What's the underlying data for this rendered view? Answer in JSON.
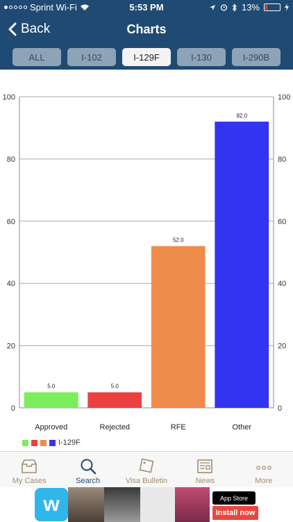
{
  "status_bar": {
    "carrier": "Sprint Wi-Fi",
    "time": "5:53 PM",
    "battery": "13%"
  },
  "nav": {
    "back_label": "Back",
    "title": "Charts"
  },
  "tabs": [
    {
      "label": "ALL",
      "active": false
    },
    {
      "label": "I-102",
      "active": false
    },
    {
      "label": "I-129F",
      "active": true
    },
    {
      "label": "I-130",
      "active": false
    },
    {
      "label": "I-290B",
      "active": false
    }
  ],
  "chart_data": {
    "type": "bar",
    "categories": [
      "Approved",
      "Rejected",
      "RFE",
      "Other"
    ],
    "values": [
      5,
      5,
      52,
      92
    ],
    "value_labels": [
      "5.0",
      "5.0",
      "52.0",
      "92.0"
    ],
    "colors": [
      "#7ced5b",
      "#eb4040",
      "#ef8c4b",
      "#3333f2"
    ],
    "ylim": [
      0,
      100
    ],
    "yticks": [
      0,
      20,
      40,
      60,
      80,
      100
    ],
    "legend": {
      "label": "I-129F",
      "position": "bottom-left"
    },
    "grid": true
  },
  "bottom_tabs": [
    {
      "label": "My Cases",
      "icon": "inbox-icon",
      "active": false
    },
    {
      "label": "Search",
      "icon": "search-icon",
      "active": true
    },
    {
      "label": "Visa Bulletin",
      "icon": "tag-icon",
      "active": false
    },
    {
      "label": "News",
      "icon": "newspaper-icon",
      "active": false
    },
    {
      "label": "More",
      "icon": "more-dots-icon",
      "active": false
    }
  ],
  "ad": {
    "brand": "w",
    "store_badge": "App Store",
    "cta": "Install now"
  }
}
